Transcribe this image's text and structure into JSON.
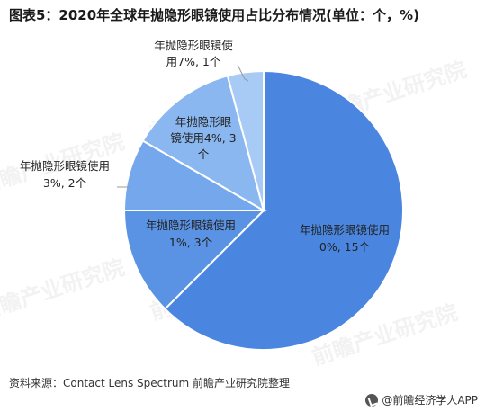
{
  "title": "图表5：2020年全球年抛隐形眼镜使用占比分布情况(单位：个，%)",
  "source": "资料来源：Contact Lens Spectrum 前瞻产业研究院整理",
  "brand": "@前瞻经济学人APP",
  "watermark_text": "前瞻产业研究院",
  "chart_data": {
    "type": "pie",
    "slices": [
      {
        "label_line1": "年抛隐形眼镜使用",
        "label_line2": "0%, 15个",
        "value": 15,
        "color": "#4a86e0"
      },
      {
        "label_line1": "年抛隐形眼镜使用",
        "label_line2": "1%, 3个",
        "value": 3,
        "color": "#5b93e4"
      },
      {
        "label_line1": "年抛隐形眼镜使用",
        "label_line2": "3%, 2个",
        "value": 2,
        "color": "#74a7ec"
      },
      {
        "label_line1": "年抛隐形眼",
        "label_line2": "镜使用4%, 3",
        "label_line3": "个",
        "value": 3,
        "color": "#8ab7f0"
      },
      {
        "label_line1": "年抛隐形眼镜使",
        "label_line2": "用7%, 1个",
        "value": 1,
        "color": "#a8cbf6"
      }
    ]
  }
}
